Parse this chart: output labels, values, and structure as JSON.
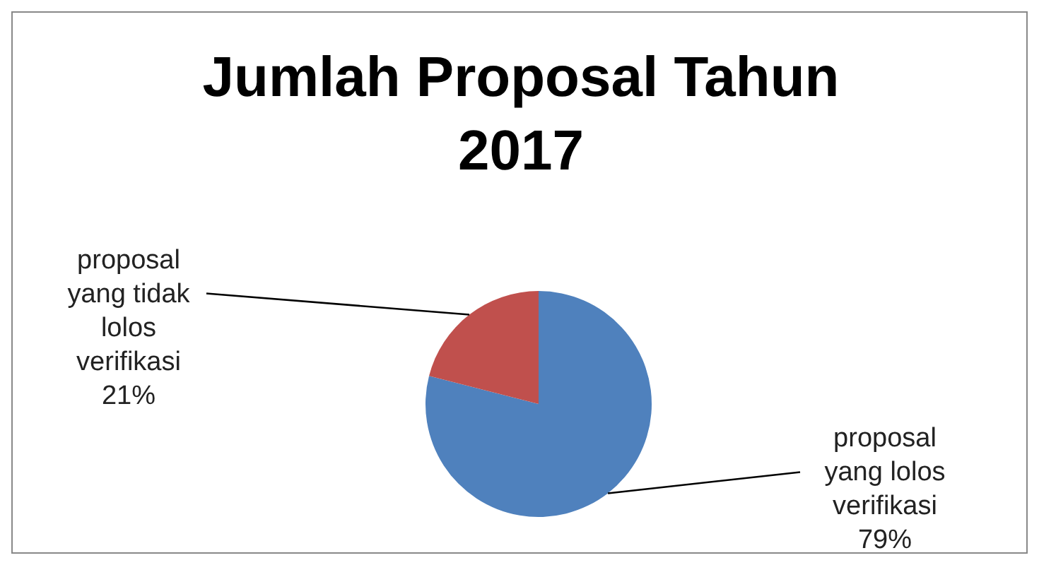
{
  "chart_data": {
    "type": "pie",
    "title": "Jumlah Proposal Tahun 2017",
    "categories": [
      "proposal yang lolos verifikasi",
      "proposal yang tidak lolos verifikasi"
    ],
    "values": [
      79,
      21
    ],
    "colors": [
      "#4f81bd",
      "#c0504d"
    ],
    "value_labels": [
      "79%",
      "21%"
    ],
    "legend": false
  }
}
